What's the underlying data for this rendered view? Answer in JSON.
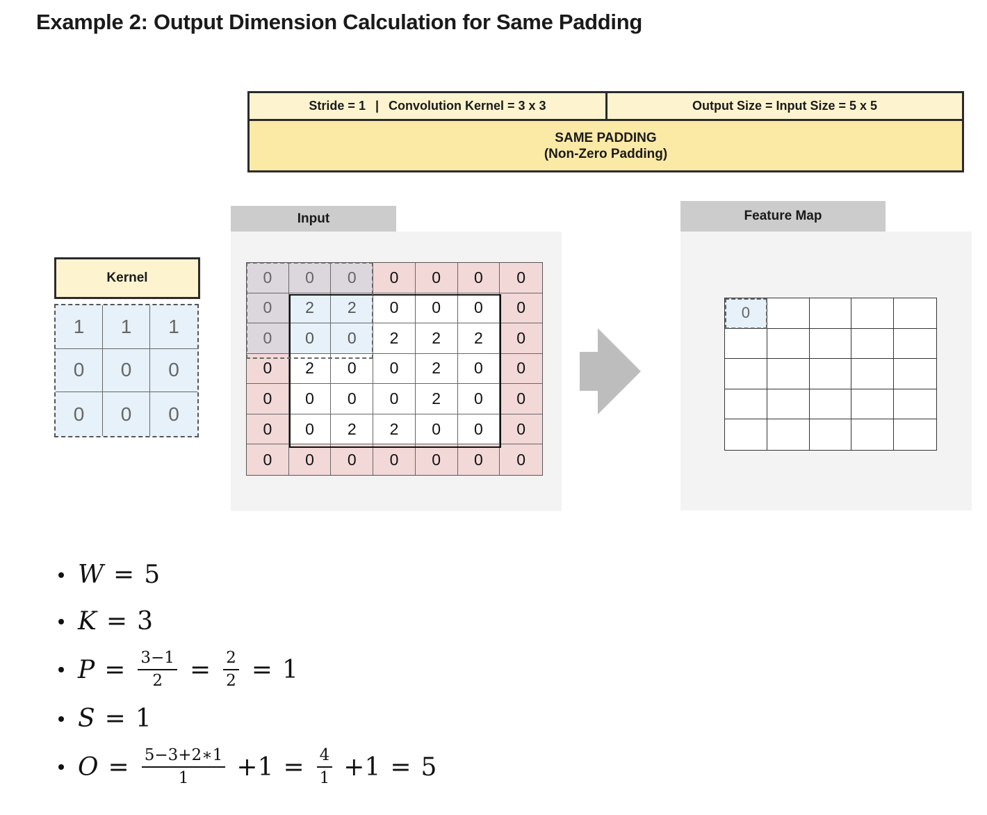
{
  "title": "Example 2: Output Dimension Calculation for Same Padding",
  "header": {
    "stride_label": "Stride = 1",
    "separator": "|",
    "kernel_size_label": "Convolution Kernel = 3 x 3",
    "output_label": "Output Size = Input Size = 5 x 5",
    "padding_title": "SAME PADDING",
    "padding_subtitle": "(Non-Zero Padding)"
  },
  "kernel": {
    "label": "Kernel",
    "rows": [
      [
        "1",
        "1",
        "1"
      ],
      [
        "0",
        "0",
        "0"
      ],
      [
        "0",
        "0",
        "0"
      ]
    ]
  },
  "input": {
    "label": "Input",
    "rows": [
      [
        "0",
        "0",
        "0",
        "0",
        "0",
        "0",
        "0"
      ],
      [
        "0",
        "2",
        "2",
        "0",
        "0",
        "0",
        "0"
      ],
      [
        "0",
        "0",
        "0",
        "2",
        "2",
        "2",
        "0"
      ],
      [
        "0",
        "2",
        "0",
        "0",
        "2",
        "0",
        "0"
      ],
      [
        "0",
        "0",
        "0",
        "0",
        "2",
        "0",
        "0"
      ],
      [
        "0",
        "0",
        "2",
        "2",
        "0",
        "0",
        "0"
      ],
      [
        "0",
        "0",
        "0",
        "0",
        "0",
        "0",
        "0"
      ]
    ]
  },
  "feature_map": {
    "label": "Feature Map",
    "rows": [
      [
        "0",
        "",
        "",
        "",
        ""
      ],
      [
        "",
        "",
        "",
        "",
        ""
      ],
      [
        "",
        "",
        "",
        "",
        ""
      ],
      [
        "",
        "",
        "",
        "",
        ""
      ],
      [
        "",
        "",
        "",
        "",
        ""
      ]
    ]
  },
  "colors": {
    "header_fill": "#fbeaa6",
    "header_light": "#fdf4cf",
    "kernel_fill": "#e6f1f9",
    "padding_fill": "#f3d8d8",
    "window_padding_fill": "#dcd6dd",
    "panel_tab": "#cccccc",
    "panel_body": "#f3f3f3",
    "arrow": "#bdbdbd"
  },
  "formulas": {
    "w": {
      "var": "W",
      "eq": "=",
      "value": "5"
    },
    "k": {
      "var": "K",
      "eq": "=",
      "value": "3"
    },
    "p": {
      "var": "P",
      "eq": "=",
      "num1": "3−1",
      "den1": "2",
      "eq2": "=",
      "num2": "2",
      "den2": "2",
      "eq3": "=",
      "value": "1"
    },
    "s": {
      "var": "S",
      "eq": "=",
      "value": "1"
    },
    "o": {
      "var": "O",
      "eq": "=",
      "num1": "5−3+2∗1",
      "den1": "1",
      "plus1": "+1",
      "eq2": "=",
      "num2": "4",
      "den2": "1",
      "plus2": "+1",
      "eq3": "=",
      "value": "5"
    }
  }
}
